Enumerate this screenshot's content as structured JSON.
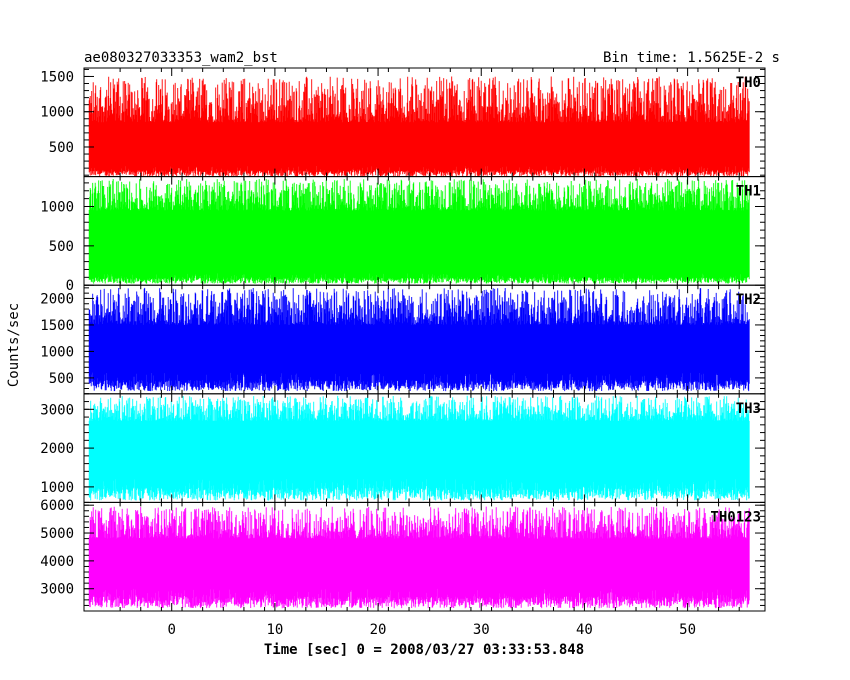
{
  "header": {
    "title": "ae080327033353_wam2_bst",
    "bin_time": "Bin time: 1.5625E-2 s"
  },
  "axes": {
    "ylabel": "Counts/sec",
    "xlabel": "Time [sec] 0 = 2008/03/27 03:33:53.848"
  },
  "chart_data": {
    "type": "line",
    "title": "ae080327033353_wam2_bst",
    "subtitle": "Bin time: 1.5625E-2 s",
    "xlabel": "Time [sec] 0 = 2008/03/27 03:33:53.848",
    "ylabel": "Counts/sec",
    "xlim": [
      -8.5,
      57.5
    ],
    "x_ticks": [
      0,
      10,
      20,
      30,
      40,
      50
    ],
    "x_ticklabels": [
      "0",
      "10",
      "20",
      "30",
      "40",
      "50"
    ],
    "data_x_range": [
      -8,
      56
    ],
    "grid": false,
    "series": [
      {
        "name": "TH0",
        "color": "#ff0000",
        "ylim": [
          80,
          1620
        ],
        "baseline": 520,
        "low_range": [
          80,
          230
        ],
        "high_range": [
          850,
          1500
        ],
        "yticks": [
          500,
          1000,
          1500
        ],
        "yticklabels": [
          "500",
          "1000",
          "1500"
        ]
      },
      {
        "name": "TH1",
        "color": "#00ff00",
        "ylim": [
          0,
          1380
        ],
        "baseline": 620,
        "low_range": [
          20,
          150
        ],
        "high_range": [
          950,
          1350
        ],
        "yticks": [
          0,
          500,
          1000
        ],
        "yticklabels": [
          "0",
          "500",
          "1000"
        ]
      },
      {
        "name": "TH2",
        "color": "#0000ff",
        "ylim": [
          200,
          2250
        ],
        "baseline": 1050,
        "low_range": [
          250,
          600
        ],
        "high_range": [
          1500,
          2200
        ],
        "yticks": [
          500,
          1000,
          1500,
          2000
        ],
        "yticklabels": [
          "500",
          "1000",
          "1500",
          "2000"
        ]
      },
      {
        "name": "TH3",
        "color": "#00ffff",
        "ylim": [
          600,
          3400
        ],
        "baseline": 1950,
        "low_range": [
          650,
          1200
        ],
        "high_range": [
          2700,
          3350
        ],
        "yticks": [
          1000,
          2000,
          3000
        ],
        "yticklabels": [
          "1000",
          "2000",
          "3000"
        ]
      },
      {
        "name": "TH0123",
        "color": "#ff00ff",
        "ylim": [
          2200,
          6100
        ],
        "baseline": 3900,
        "low_range": [
          2300,
          3000
        ],
        "high_range": [
          4800,
          5950
        ],
        "yticks": [
          3000,
          4000,
          5000,
          6000
        ],
        "yticklabels": [
          "3000",
          "4000",
          "5000",
          "6000"
        ]
      }
    ]
  }
}
